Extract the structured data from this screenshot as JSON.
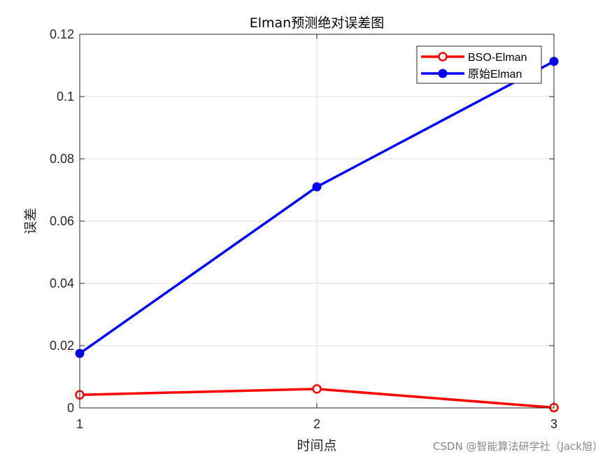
{
  "chart_data": {
    "type": "line",
    "title": "Elman预测绝对误差图",
    "xlabel": "时间点",
    "ylabel": "误差",
    "x": [
      1,
      2,
      3
    ],
    "xlim": [
      1,
      3
    ],
    "ylim": [
      0,
      0.12
    ],
    "xticks": [
      "1",
      "2",
      "3"
    ],
    "yticks": [
      "0",
      "0.02",
      "0.04",
      "0.06",
      "0.08",
      "0.1",
      "0.12"
    ],
    "grid": true,
    "legend_position": "top-right",
    "series": [
      {
        "name": "BSO-Elman",
        "values": [
          0.0042,
          0.0061,
          0.0001
        ],
        "color": "#ff0000",
        "marker": "open-circle"
      },
      {
        "name": "原始Elman",
        "values": [
          0.0175,
          0.071,
          0.1113
        ],
        "color": "#0000ff",
        "marker": "filled-circle"
      }
    ]
  },
  "watermark": "CSDN @智能算法研学社（Jack旭）"
}
